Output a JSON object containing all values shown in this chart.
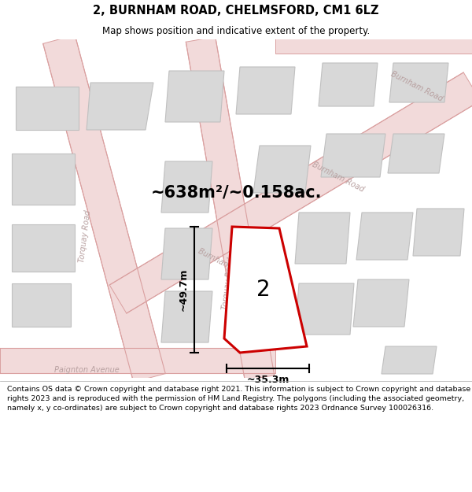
{
  "title_line1": "2, BURNHAM ROAD, CHELMSFORD, CM1 6LZ",
  "title_line2": "Map shows position and indicative extent of the property.",
  "area_text": "~638m²/~0.158ac.",
  "property_number": "2",
  "dim_width": "~35.3m",
  "dim_height": "~49.7m",
  "footer_text": "Contains OS data © Crown copyright and database right 2021. This information is subject to Crown copyright and database rights 2023 and is reproduced with the permission of HM Land Registry. The polygons (including the associated geometry, namely x, y co-ordinates) are subject to Crown copyright and database rights 2023 Ordnance Survey 100026316.",
  "map_bg": "#f7f3f3",
  "building_color": "#d8d8d8",
  "building_edge": "#c0c0c0",
  "road_fill": "#f2dada",
  "road_edge": "#daa0a0",
  "property_fill": "#ffffff",
  "property_edge": "#cc0000",
  "title_bg": "#ffffff",
  "footer_bg": "#ffffff",
  "road_label_color": "#b8a0a0"
}
